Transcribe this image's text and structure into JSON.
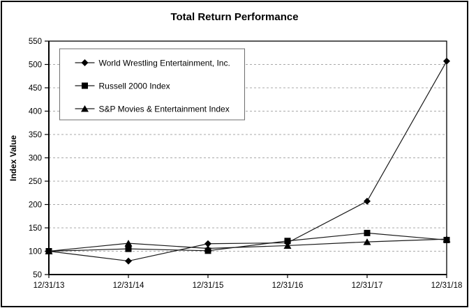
{
  "chart_data": {
    "type": "line",
    "title": "Total Return Performance",
    "xlabel": "",
    "ylabel": "Index Value",
    "categories": [
      "12/31/13",
      "12/31/14",
      "12/31/15",
      "12/31/16",
      "12/31/17",
      "12/31/18"
    ],
    "series": [
      {
        "name": "World Wrestling Entertainment, Inc.",
        "marker": "diamond",
        "values": [
          100,
          79,
          116,
          118,
          207,
          507
        ]
      },
      {
        "name": "Russell 2000 Index",
        "marker": "square",
        "values": [
          100,
          105,
          101,
          122,
          139,
          124
        ]
      },
      {
        "name": "S&P Movies & Entertainment Index",
        "marker": "triangle",
        "values": [
          100,
          117,
          106,
          112,
          120,
          126
        ]
      }
    ],
    "ylim": [
      50,
      550
    ],
    "ytick_step": 50,
    "yticks": [
      50,
      100,
      150,
      200,
      250,
      300,
      350,
      400,
      450,
      500,
      550
    ],
    "grid": "horizontal-dashed",
    "legend_position": "top-left-inside",
    "colors": {
      "line": "#1a1a1a",
      "marker": "#000000",
      "grid": "#a8a8a8",
      "axis": "#000000",
      "plot_border": "#000000",
      "legend_border": "#6e6e6e",
      "background": "#ffffff"
    }
  }
}
